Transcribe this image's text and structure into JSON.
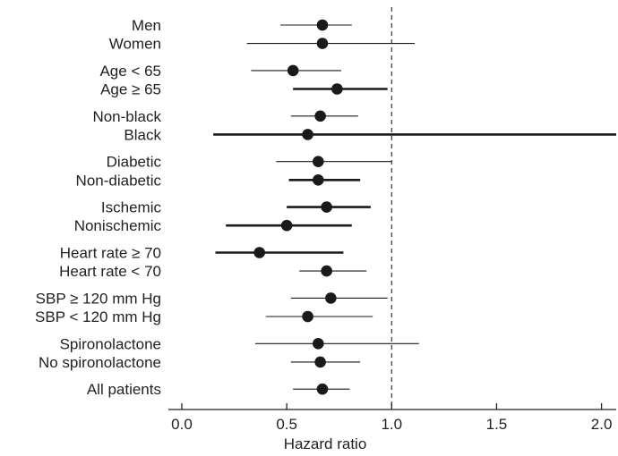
{
  "chart_data": {
    "type": "forest",
    "xlabel": "Hazard ratio",
    "xlim": [
      0.0,
      2.07
    ],
    "xticks": [
      0.0,
      0.5,
      1.0,
      1.5,
      2.0
    ],
    "xtick_labels": [
      "0.0",
      "0.5",
      "1.0",
      "1.5",
      "2.0"
    ],
    "reference_line": 1.0,
    "colors": {
      "marker": "#1a1a1a",
      "line": "#1a1a1a",
      "axis": "#222222",
      "reference": "#333333"
    },
    "rows": [
      {
        "label": "Men",
        "group": 0,
        "hr": 0.67,
        "lower": 0.47,
        "upper": 0.81,
        "bold": false
      },
      {
        "label": "Women",
        "group": 0,
        "hr": 0.67,
        "lower": 0.31,
        "upper": 1.11,
        "bold": false
      },
      {
        "label": "Age < 65",
        "group": 1,
        "hr": 0.53,
        "lower": 0.33,
        "upper": 0.76,
        "bold": false
      },
      {
        "label": "Age ≥ 65",
        "group": 1,
        "hr": 0.74,
        "lower": 0.53,
        "upper": 0.98,
        "bold": true
      },
      {
        "label": "Non-black",
        "group": 2,
        "hr": 0.66,
        "lower": 0.52,
        "upper": 0.84,
        "bold": false
      },
      {
        "label": "Black",
        "group": 2,
        "hr": 0.6,
        "lower": 0.15,
        "upper": 2.07,
        "bold": true
      },
      {
        "label": "Diabetic",
        "group": 3,
        "hr": 0.65,
        "lower": 0.45,
        "upper": 1.0,
        "bold": false
      },
      {
        "label": "Non-diabetic",
        "group": 3,
        "hr": 0.65,
        "lower": 0.51,
        "upper": 0.85,
        "bold": true
      },
      {
        "label": "Ischemic",
        "group": 4,
        "hr": 0.69,
        "lower": 0.5,
        "upper": 0.9,
        "bold": true
      },
      {
        "label": "Nonischemic",
        "group": 4,
        "hr": 0.5,
        "lower": 0.21,
        "upper": 0.81,
        "bold": true
      },
      {
        "label": "Heart rate ≥ 70",
        "group": 5,
        "hr": 0.37,
        "lower": 0.16,
        "upper": 0.77,
        "bold": true
      },
      {
        "label": "Heart rate < 70",
        "group": 5,
        "hr": 0.69,
        "lower": 0.56,
        "upper": 0.88,
        "bold": false
      },
      {
        "label": "SBP ≥ 120 mm Hg",
        "group": 6,
        "hr": 0.71,
        "lower": 0.52,
        "upper": 0.98,
        "bold": false
      },
      {
        "label": "SBP < 120 mm Hg",
        "group": 6,
        "hr": 0.6,
        "lower": 0.4,
        "upper": 0.91,
        "bold": false
      },
      {
        "label": "Spironolactone",
        "group": 7,
        "hr": 0.65,
        "lower": 0.35,
        "upper": 1.13,
        "bold": false
      },
      {
        "label": "No spironolactone",
        "group": 7,
        "hr": 0.66,
        "lower": 0.52,
        "upper": 0.85,
        "bold": false
      },
      {
        "label": "All patients",
        "group": 8,
        "hr": 0.67,
        "lower": 0.53,
        "upper": 0.8,
        "bold": false
      }
    ]
  }
}
